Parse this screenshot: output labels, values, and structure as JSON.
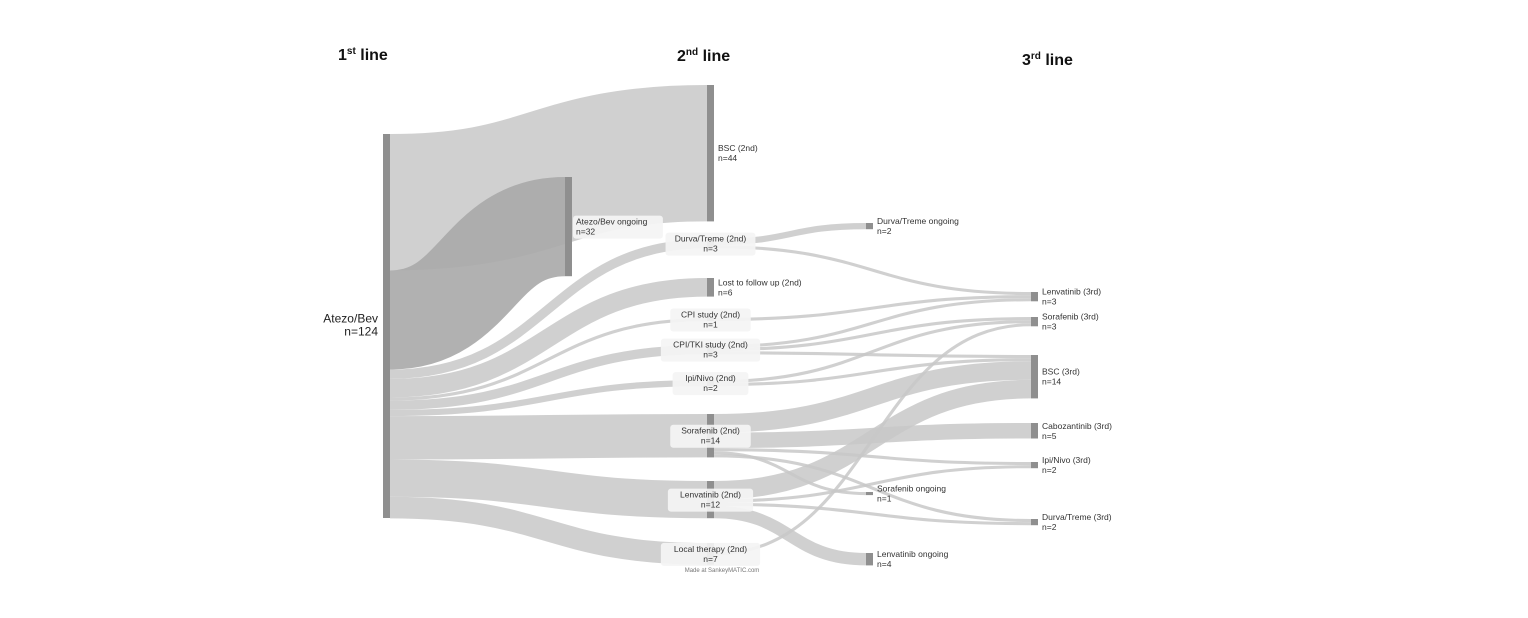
{
  "columns": [
    {
      "main": "1",
      "sup": "st",
      "rest": " line"
    },
    {
      "main": "2",
      "sup": "nd",
      "rest": " line"
    },
    {
      "main": "3",
      "sup": "rd",
      "rest": " line"
    }
  ],
  "nodes": [
    {
      "id": "atezo",
      "name": "Atezo/Bev",
      "count": "n=124"
    },
    {
      "id": "ongoing1",
      "name": "Atezo/Bev ongoing",
      "count": "n=32"
    },
    {
      "id": "bsc2",
      "name": "BSC (2nd)",
      "count": "n=44"
    },
    {
      "id": "durva2",
      "name": "Durva/Treme (2nd)",
      "count": "n=3"
    },
    {
      "id": "lost2",
      "name": "Lost to follow up (2nd)",
      "count": "n=6"
    },
    {
      "id": "cpi2",
      "name": "CPI study (2nd)",
      "count": "n=1"
    },
    {
      "id": "cpitki2",
      "name": "CPI/TKI study (2nd)",
      "count": "n=3"
    },
    {
      "id": "ipi2",
      "name": "Ipi/Nivo (2nd)",
      "count": "n=2"
    },
    {
      "id": "sora2",
      "name": "Sorafenib (2nd)",
      "count": "n=14"
    },
    {
      "id": "lenva2",
      "name": "Lenvatinib (2nd)",
      "count": "n=12"
    },
    {
      "id": "local2",
      "name": "Local therapy (2nd)",
      "count": "n=7"
    },
    {
      "id": "durvaong",
      "name": "Durva/Treme ongoing",
      "count": "n=2"
    },
    {
      "id": "soraong",
      "name": "Sorafenib ongoing",
      "count": "n=1"
    },
    {
      "id": "lenvaong",
      "name": "Lenvatinib ongoing",
      "count": "n=4"
    },
    {
      "id": "lenva3",
      "name": "Lenvatinib (3rd)",
      "count": "n=3"
    },
    {
      "id": "sora3",
      "name": "Sorafenib (3rd)",
      "count": "n=3"
    },
    {
      "id": "bsc3",
      "name": "BSC (3rd)",
      "count": "n=14"
    },
    {
      "id": "cabo3",
      "name": "Cabozantinib (3rd)",
      "count": "n=5"
    },
    {
      "id": "ipi3",
      "name": "Ipi/Nivo (3rd)",
      "count": "n=2"
    },
    {
      "id": "durva3",
      "name": "Durva/Treme (3rd)",
      "count": "n=2"
    }
  ],
  "links": [
    {
      "source": "atezo",
      "target": "bsc2",
      "value": 44
    },
    {
      "source": "atezo",
      "target": "ongoing1",
      "value": 32
    },
    {
      "source": "atezo",
      "target": "durva2",
      "value": 3
    },
    {
      "source": "atezo",
      "target": "lost2",
      "value": 6
    },
    {
      "source": "atezo",
      "target": "cpi2",
      "value": 1
    },
    {
      "source": "atezo",
      "target": "cpitki2",
      "value": 3
    },
    {
      "source": "atezo",
      "target": "ipi2",
      "value": 2
    },
    {
      "source": "atezo",
      "target": "sora2",
      "value": 14
    },
    {
      "source": "atezo",
      "target": "lenva2",
      "value": 12
    },
    {
      "source": "atezo",
      "target": "local2",
      "value": 7
    },
    {
      "source": "durva2",
      "target": "durvaong",
      "value": 2
    },
    {
      "source": "durva2",
      "target": "lenva3",
      "value": 1
    },
    {
      "source": "cpi2",
      "target": "lenva3",
      "value": 1
    },
    {
      "source": "cpitki2",
      "target": "lenva3",
      "value": 1
    },
    {
      "source": "cpitki2",
      "target": "sora3",
      "value": 1
    },
    {
      "source": "cpitki2",
      "target": "bsc3",
      "value": 1
    },
    {
      "source": "ipi2",
      "target": "sora3",
      "value": 1
    },
    {
      "source": "ipi2",
      "target": "bsc3",
      "value": 1
    },
    {
      "source": "sora2",
      "target": "bsc3",
      "value": 6
    },
    {
      "source": "sora2",
      "target": "cabo3",
      "value": 5
    },
    {
      "source": "sora2",
      "target": "ipi3",
      "value": 1
    },
    {
      "source": "sora2",
      "target": "soraong",
      "value": 1
    },
    {
      "source": "sora2",
      "target": "durva3",
      "value": 1
    },
    {
      "source": "lenva2",
      "target": "bsc3",
      "value": 6
    },
    {
      "source": "lenva2",
      "target": "ipi3",
      "value": 1
    },
    {
      "source": "lenva2",
      "target": "durva3",
      "value": 1
    },
    {
      "source": "lenva2",
      "target": "lenvaong",
      "value": 4
    },
    {
      "source": "local2",
      "target": "sora3",
      "value": 1
    }
  ],
  "credit": "Made at SankeyMATIC.com",
  "colors": {
    "node": "#8f8f8f",
    "link": "#c8c8c8",
    "link_dark": "#a9a9a9",
    "label_bg": "#f4f4f4"
  }
}
